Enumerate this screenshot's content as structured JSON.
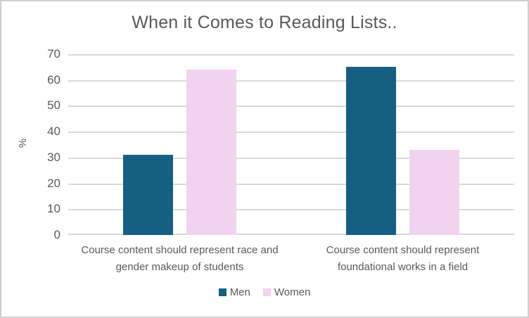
{
  "chart_data": {
    "type": "bar",
    "title": "When it Comes to Reading Lists..",
    "xlabel": "",
    "ylabel": "%",
    "ylim": [
      0,
      70
    ],
    "ytick_step": 10,
    "grid": true,
    "legend_position": "bottom",
    "categories": [
      "Course content should represent race and\ngender makeup of students",
      "Course content should represent\nfoundational works in a field"
    ],
    "series": [
      {
        "name": "Men",
        "color": "#156082",
        "values": [
          31,
          65
        ]
      },
      {
        "name": "Women",
        "color": "#F1D3EF",
        "values": [
          64,
          33
        ]
      }
    ],
    "colors": {
      "text": "#595959",
      "gridline": "#D9D9D9",
      "frame_border": "#CFCFCF",
      "background": "#FFFFFF"
    }
  }
}
